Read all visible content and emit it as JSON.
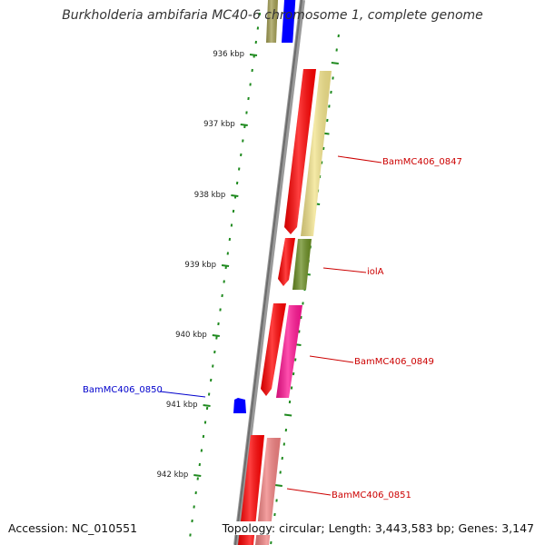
{
  "header": {
    "title": "Burkholderia ambifaria MC40-6 chromosome 1, complete genome"
  },
  "footer": {
    "accession": "Accession: NC_010551",
    "summary": "Topology: circular; Length: 3,443,583 bp; Genes: 3,147"
  },
  "scale": {
    "labels": [
      "936 kbp",
      "937 kbp",
      "938 kbp",
      "939 kbp",
      "940 kbp",
      "941 kbp",
      "942 kbp"
    ]
  },
  "genes": [
    {
      "name": "",
      "strand": "+",
      "color": "#a39e52"
    },
    {
      "name": "",
      "strand": "-",
      "color": "#0000ff"
    },
    {
      "name": "",
      "strand": "+",
      "color": "#ff0000"
    },
    {
      "name": "BamMC406_0847",
      "strand": "+",
      "color": "#f2e38a",
      "label_color": "#cc0000"
    },
    {
      "name": "",
      "strand": "+",
      "color": "#ff0000"
    },
    {
      "name": "iolA",
      "strand": "+",
      "color": "#6b8e23",
      "label_color": "#cc0000"
    },
    {
      "name": "",
      "strand": "+",
      "color": "#ff0000"
    },
    {
      "name": "BamMC406_0849",
      "strand": "+",
      "color": "#ff1493",
      "label_color": "#cc0000"
    },
    {
      "name": "BamMC406_0850",
      "strand": "-",
      "color": "#0000ff",
      "label_color": "#0000cc"
    },
    {
      "name": "",
      "strand": "+",
      "color": "#ff0000"
    },
    {
      "name": "BamMC406_0851",
      "strand": "+",
      "color": "#f08080",
      "label_color": "#cc0000"
    }
  ]
}
